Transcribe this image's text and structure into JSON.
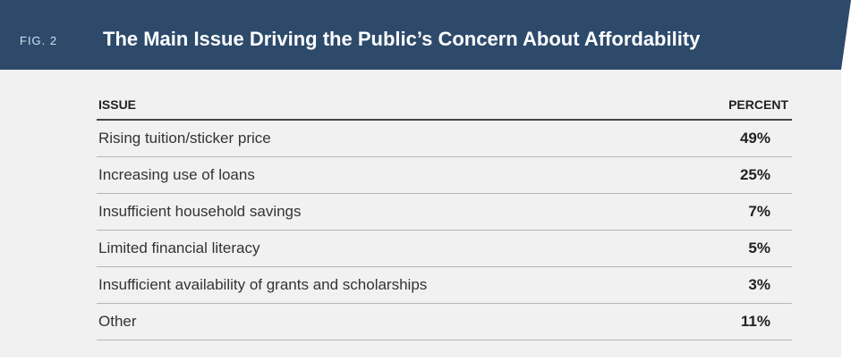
{
  "header": {
    "fig_label": "FIG. 2",
    "title": "The Main Issue Driving the Public’s Concern About Affordability"
  },
  "table": {
    "columns": [
      "ISSUE",
      "PERCENT"
    ],
    "rows": [
      [
        "Rising tuition/sticker price",
        "49%"
      ],
      [
        "Increasing use of loans",
        "25%"
      ],
      [
        "Insufficient household savings",
        "7%"
      ],
      [
        "Limited financial literacy",
        "5%"
      ],
      [
        "Insufficient availability of grants and scholarships",
        "3%"
      ],
      [
        "Other",
        "11%"
      ]
    ]
  }
}
